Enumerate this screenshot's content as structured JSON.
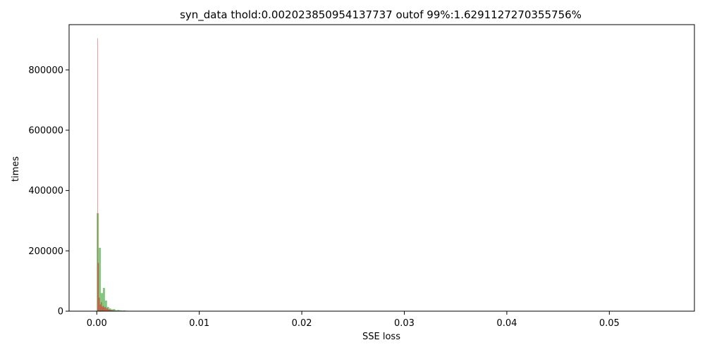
{
  "chart_data": {
    "type": "bar",
    "title": "syn_data thold:0.002023850954137737 outof 99%:1.6291127270355756%",
    "xlabel": "SSE loss",
    "ylabel": "times",
    "xlim": [
      -0.0027,
      0.0583
    ],
    "ylim": [
      0,
      950000
    ],
    "x_ticks": [
      0.0,
      0.01,
      0.02,
      0.03,
      0.04,
      0.05
    ],
    "x_tick_labels": [
      "0.00",
      "0.01",
      "0.02",
      "0.03",
      "0.04",
      "0.05"
    ],
    "y_ticks": [
      0,
      200000,
      400000,
      600000,
      800000
    ],
    "y_tick_labels": [
      "0",
      "200000",
      "400000",
      "600000",
      "800000"
    ],
    "grid": false,
    "series": [
      {
        "color": "#4daf4a",
        "opacity": 0.7,
        "bins": [
          {
            "x0": 0.0,
            "x1": 0.0002,
            "value": 325000
          },
          {
            "x0": 0.0002,
            "x1": 0.0004,
            "value": 210000
          },
          {
            "x0": 0.0004,
            "x1": 0.0006,
            "value": 60000
          },
          {
            "x0": 0.0006,
            "x1": 0.0008,
            "value": 77000
          },
          {
            "x0": 0.0008,
            "x1": 0.001,
            "value": 35000
          },
          {
            "x0": 0.001,
            "x1": 0.0012,
            "value": 14000
          },
          {
            "x0": 0.0012,
            "x1": 0.0014,
            "value": 9000
          },
          {
            "x0": 0.0014,
            "x1": 0.0016,
            "value": 6000
          },
          {
            "x0": 0.0016,
            "x1": 0.0018,
            "value": 7000
          },
          {
            "x0": 0.0018,
            "x1": 0.002,
            "value": 3000
          },
          {
            "x0": 0.002,
            "x1": 0.0022,
            "value": 4000
          },
          {
            "x0": 0.0022,
            "x1": 0.0024,
            "value": 3000
          },
          {
            "x0": 0.0024,
            "x1": 0.0026,
            "value": 2000
          },
          {
            "x0": 0.0026,
            "x1": 0.0028,
            "value": 2500
          },
          {
            "x0": 0.0028,
            "x1": 0.003,
            "value": 1500
          }
        ]
      },
      {
        "color": "#e41a1c",
        "opacity": 0.55,
        "bins": [
          {
            "x0": 5e-05,
            "x1": 0.0001,
            "value": 905000
          },
          {
            "x0": 0.0001,
            "x1": 0.0002,
            "value": 160000
          },
          {
            "x0": 0.0002,
            "x1": 0.0003,
            "value": 45000
          },
          {
            "x0": 0.0003,
            "x1": 0.0004,
            "value": 22000
          },
          {
            "x0": 0.0004,
            "x1": 0.0005,
            "value": 30000
          },
          {
            "x0": 0.0005,
            "x1": 0.0006,
            "value": 15000
          },
          {
            "x0": 0.0006,
            "x1": 0.0007,
            "value": 18000
          },
          {
            "x0": 0.0007,
            "x1": 0.0008,
            "value": 12000
          },
          {
            "x0": 0.0008,
            "x1": 0.0009,
            "value": 14000
          },
          {
            "x0": 0.0009,
            "x1": 0.001,
            "value": 9000
          },
          {
            "x0": 0.001,
            "x1": 0.0011,
            "value": 10000
          },
          {
            "x0": 0.0011,
            "x1": 0.0012,
            "value": 6000
          },
          {
            "x0": 0.0012,
            "x1": 0.0013,
            "value": 5000
          },
          {
            "x0": 0.0013,
            "x1": 0.0014,
            "value": 4000
          },
          {
            "x0": 0.0014,
            "x1": 0.0015,
            "value": 3000
          },
          {
            "x0": 0.0015,
            "x1": 0.0016,
            "value": 3000
          },
          {
            "x0": 0.0016,
            "x1": 0.0017,
            "value": 2000
          },
          {
            "x0": 0.0017,
            "x1": 0.0018,
            "value": 2000
          },
          {
            "x0": 0.0018,
            "x1": 0.002,
            "value": 1500
          },
          {
            "x0": 0.002,
            "x1": 0.0022,
            "value": 1000
          },
          {
            "x0": 0.0022,
            "x1": 0.0026,
            "value": 800
          }
        ]
      }
    ]
  }
}
